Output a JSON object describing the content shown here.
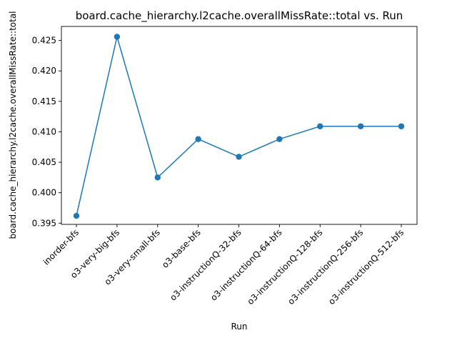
{
  "chart_data": {
    "type": "line",
    "title": "board.cache_hierarchy.l2cache.overallMissRate::total vs. Run",
    "xlabel": "Run",
    "ylabel": "board.cache_hierarchy.l2cache.overallMissRate::total",
    "categories": [
      "inorder-bfs",
      "o3-very-big-bfs",
      "o3-very-small-bfs",
      "o3-base-bfs",
      "o3-instructionQ-32-bfs",
      "o3-instructionQ-64-bfs",
      "o3-instructionQ-128-bfs",
      "o3-instructionQ-256-bfs",
      "o3-instructionQ-512-bfs"
    ],
    "series": [
      {
        "values": [
          0.3962,
          0.4256,
          0.4025,
          0.4088,
          0.4059,
          0.4088,
          0.4109,
          0.4109,
          0.4109
        ],
        "color": "#1f77b4",
        "marker": "circle"
      }
    ],
    "ylim": [
      0.3948,
      0.4273
    ],
    "yticks": [
      0.395,
      0.4,
      0.405,
      0.41,
      0.415,
      0.42,
      0.425
    ],
    "ytick_labels": [
      "0.395",
      "0.400",
      "0.405",
      "0.410",
      "0.415",
      "0.420",
      "0.425"
    ],
    "xtick_rotation": 45,
    "grid": false,
    "legend": "none"
  }
}
